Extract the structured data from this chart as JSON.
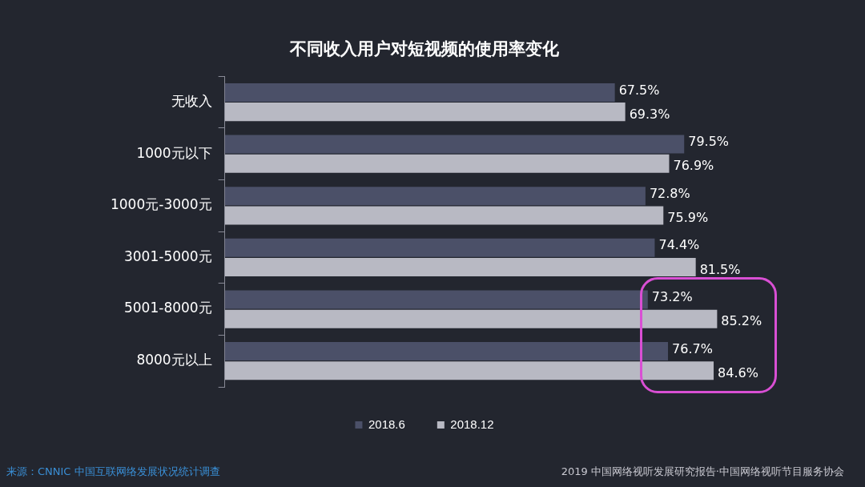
{
  "chart_data": {
    "type": "bar",
    "orientation": "horizontal",
    "title": "不同收入用户对短视频的使用率变化",
    "categories": [
      "无收入",
      "1000元以下",
      "1000元-3000元",
      "3001-5000元",
      "5001-8000元",
      "8000元以上"
    ],
    "series": [
      {
        "name": "2018.6",
        "color": "#4b5068",
        "values": [
          67.5,
          79.5,
          72.8,
          74.4,
          73.2,
          76.7
        ],
        "value_labels": [
          "67.5%",
          "79.5%",
          "72.8%",
          "74.4%",
          "73.2%",
          "76.7%"
        ]
      },
      {
        "name": "2018.12",
        "color": "#b8b9c3",
        "values": [
          69.3,
          76.9,
          75.9,
          81.5,
          85.2,
          84.6
        ],
        "value_labels": [
          "69.3%",
          "76.9%",
          "75.9%",
          "81.5%",
          "85.2%",
          "84.6%"
        ]
      }
    ],
    "legend": "bottom",
    "annotations": [
      "来源：CNNIC 中国互联网络发展状况统计调查",
      "2019 中国网络视听发展研究报告·中国网络视听节目服务协会"
    ]
  }
}
